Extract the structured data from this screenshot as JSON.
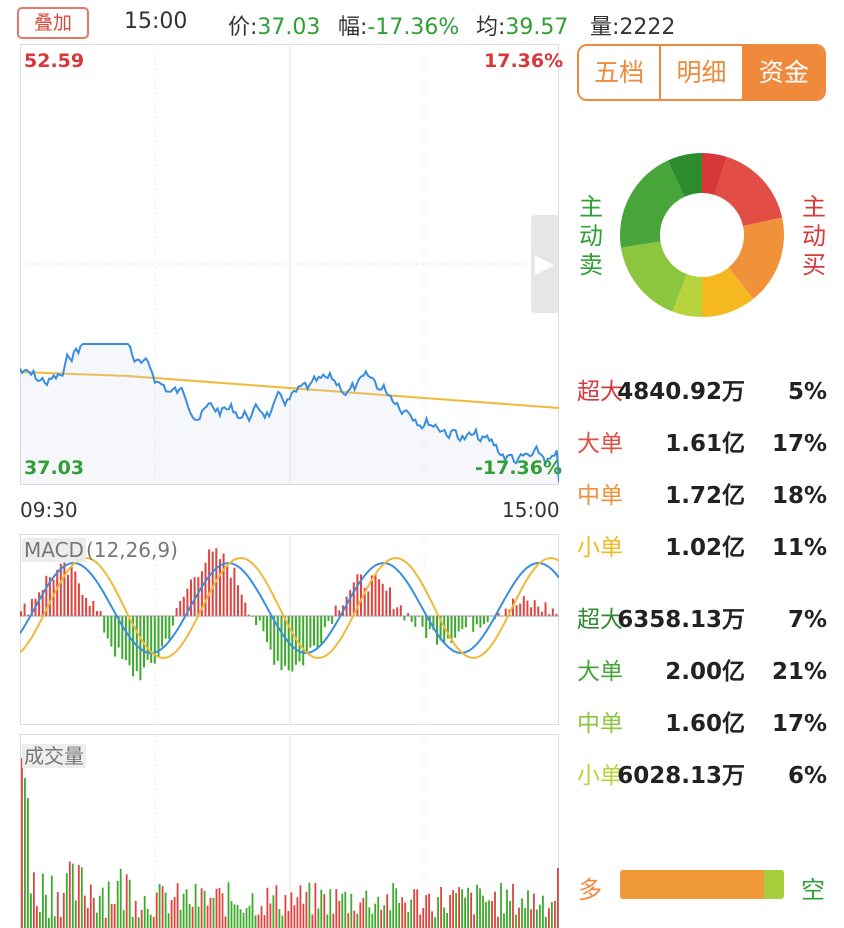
{
  "header": {
    "overlay_label": "叠加",
    "time": "15:00",
    "price_label": "价:",
    "price_value": "37.03",
    "change_label": "幅:",
    "change_value": "-17.36%",
    "avg_label": "均:",
    "avg_value": "39.57",
    "vol_label": "量:",
    "vol_value": "2222"
  },
  "price_chart": {
    "high_price": "52.59",
    "high_pct": "17.36%",
    "low_price": "37.03",
    "low_pct": "-17.36%",
    "start_time": "09:30",
    "end_time": "15:00",
    "expand_arrow": "arrow-right-icon"
  },
  "macd": {
    "title": "MACD",
    "params": "(12,26,9)"
  },
  "volume": {
    "title": "成交量"
  },
  "tabs": [
    {
      "label": "五档",
      "active": false
    },
    {
      "label": "明细",
      "active": false
    },
    {
      "label": "资金",
      "active": true
    }
  ],
  "fund": {
    "sell_label": "主动卖",
    "buy_label": "主动买",
    "buy_rows": [
      {
        "cat": "超大",
        "amount": "4840.92万",
        "pct": "5%",
        "color": "#d9383a"
      },
      {
        "cat": "大单",
        "amount": "1.61亿",
        "pct": "17%",
        "color": "#e24d45"
      },
      {
        "cat": "中单",
        "amount": "1.72亿",
        "pct": "18%",
        "color": "#f0923a"
      },
      {
        "cat": "小单",
        "amount": "1.02亿",
        "pct": "11%",
        "color": "#f5b820"
      }
    ],
    "sell_rows": [
      {
        "cat": "超大",
        "amount": "6358.13万",
        "pct": "7%",
        "color": "#2e8b2e"
      },
      {
        "cat": "大单",
        "amount": "2.00亿",
        "pct": "21%",
        "color": "#47a53a"
      },
      {
        "cat": "中单",
        "amount": "1.60亿",
        "pct": "17%",
        "color": "#8cc63f"
      },
      {
        "cat": "小单",
        "amount": "6028.13万",
        "pct": "6%",
        "color": "#b8d43c"
      }
    ],
    "bull_label": "多",
    "bear_label": "空",
    "bull_ratio": 0.88,
    "colors": {
      "bull": "#f0993b",
      "bear": "#a6cf3b"
    }
  }
}
